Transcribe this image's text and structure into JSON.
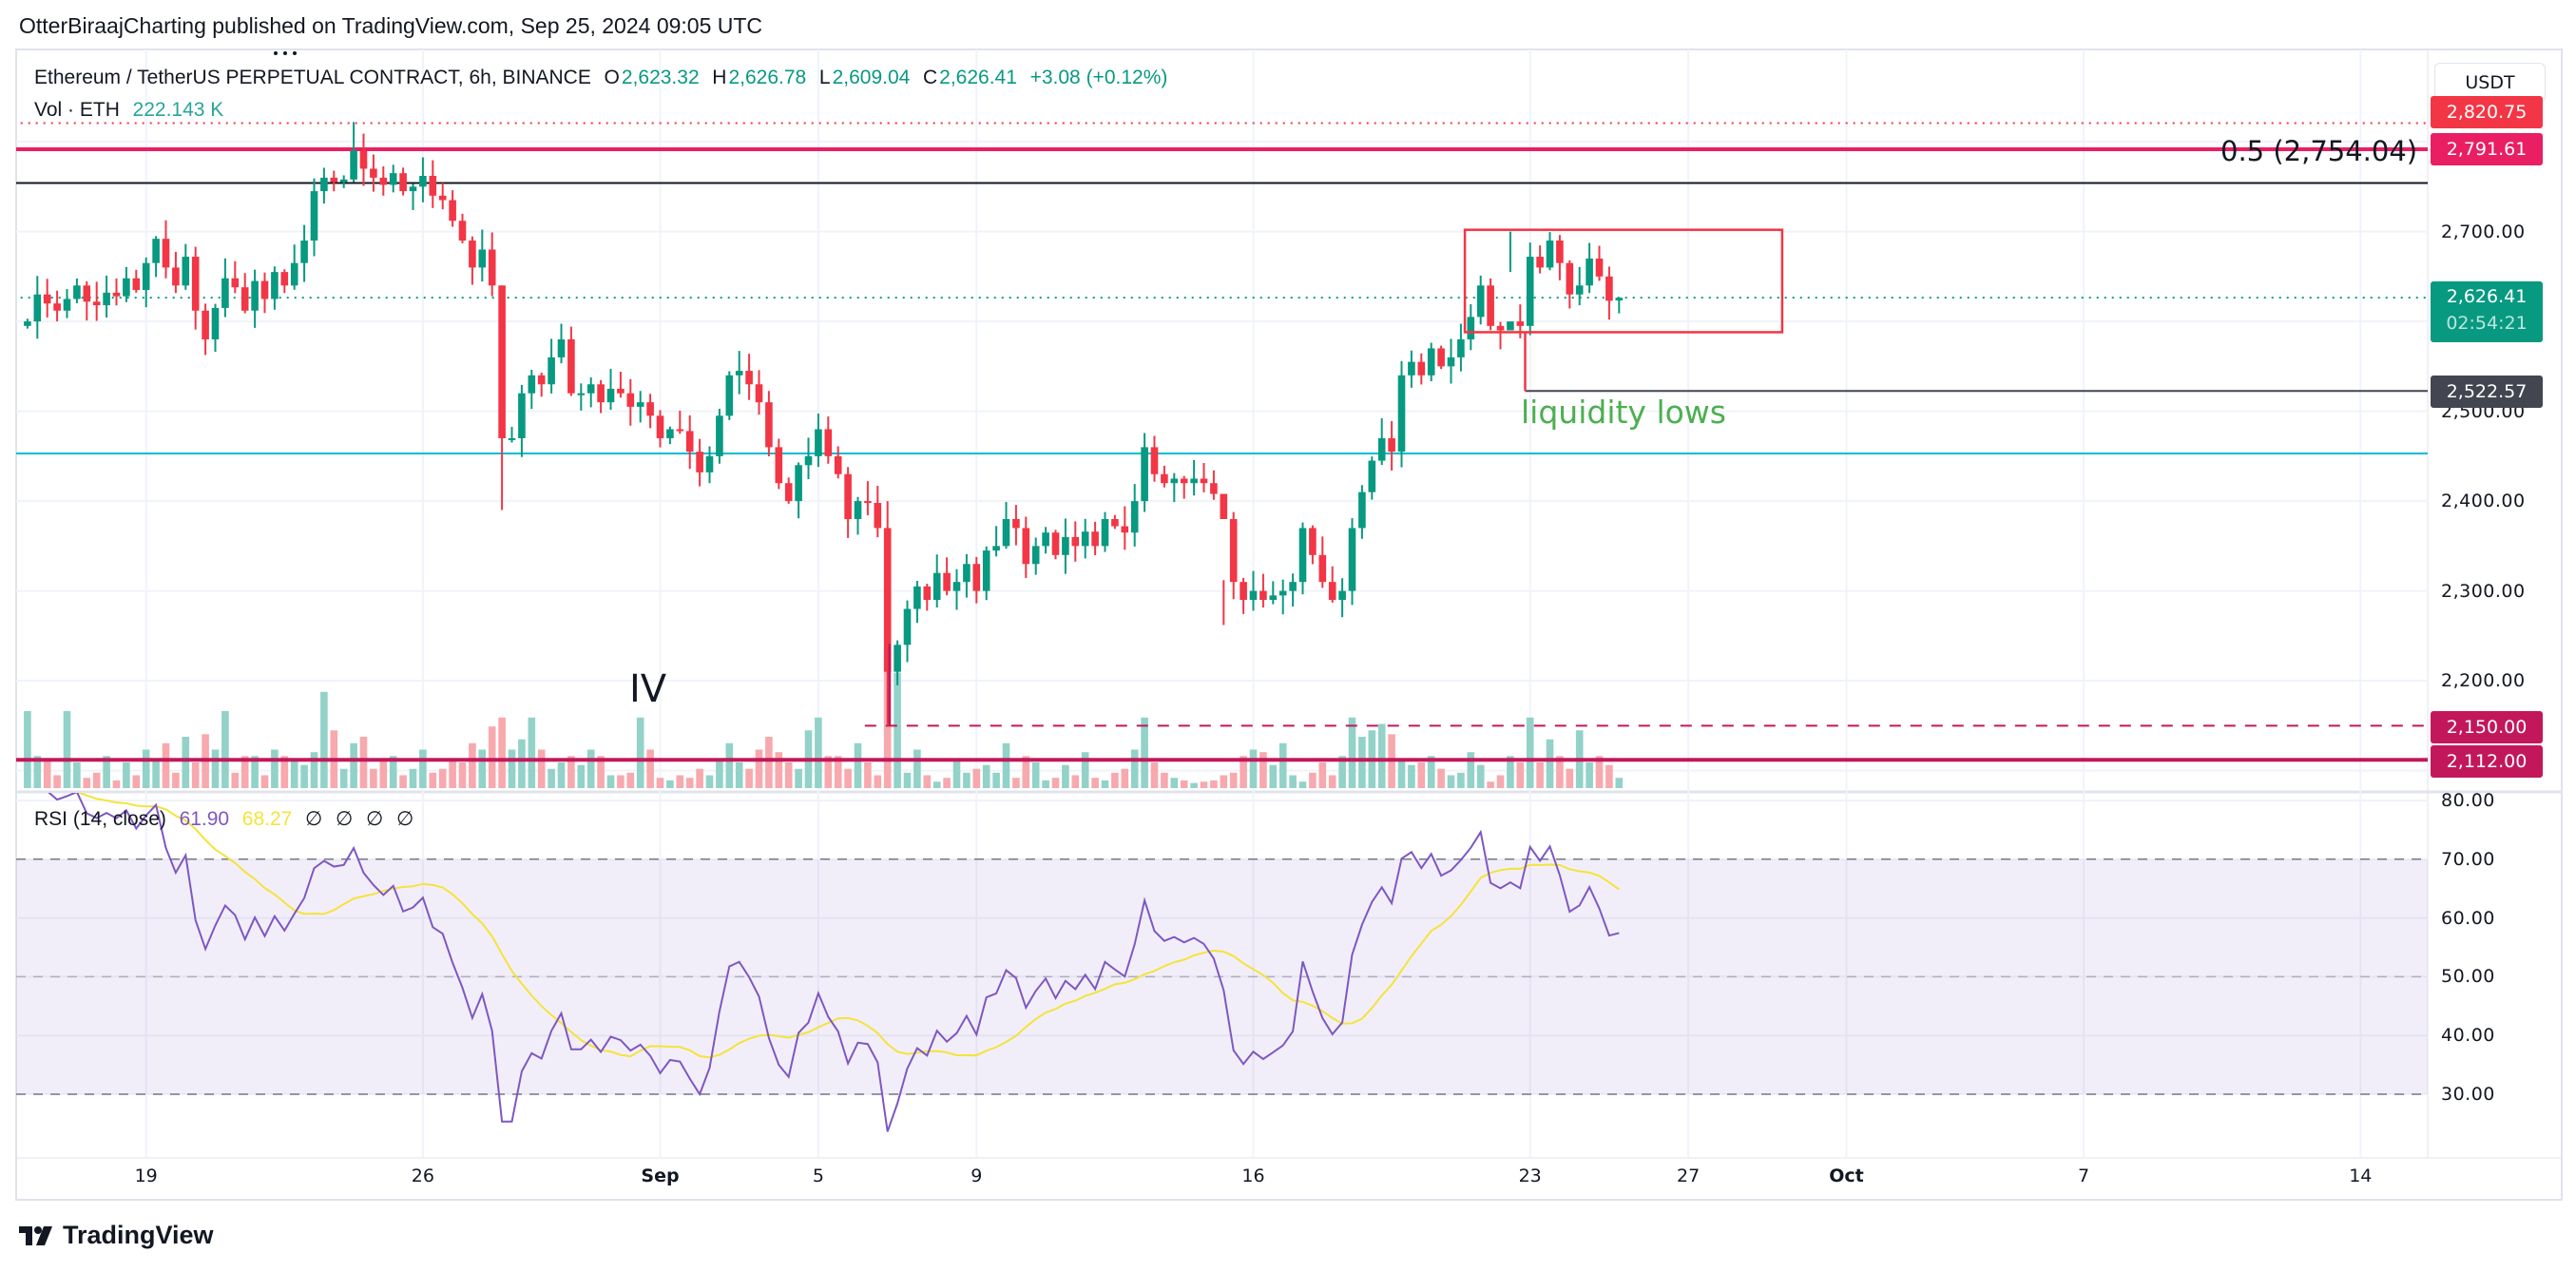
{
  "header": {
    "publisher_line": "OtterBiraajCharting published on TradingView.com, Sep 25, 2024 09:05 UTC"
  },
  "legend": {
    "symbol": "Ethereum / TetherUS PERPETUAL CONTRACT, 6h, BINANCE",
    "o_label": "O",
    "o": "2,623.32",
    "h_label": "H",
    "h": "2,626.78",
    "l_label": "L",
    "l": "2,609.04",
    "c_label": "C",
    "c": "2,626.41",
    "change": "+3.08 (+0.12%)",
    "vol_label": "Vol · ETH",
    "vol": "222.143 K"
  },
  "currency_button": "USDT",
  "price_labels": {
    "level_top": "2,820.75",
    "level_pink": "2,791.61",
    "last_price": "2,626.41",
    "countdown": "02:54:21",
    "liquidity": "2,522.57",
    "level_2150": "2,150.00",
    "level_2112": "2,112.00"
  },
  "annotations": {
    "fib": "0.5 (2,754.04)",
    "liquidity": "liquidity lows",
    "wave": "IV"
  },
  "rsi_legend": {
    "label": "RSI (14, close)",
    "rsi": "61.90",
    "ma": "68.27",
    "empty": [
      "∅",
      "∅",
      "∅",
      "∅"
    ]
  },
  "brand": "TradingView",
  "colors": {
    "up": "#089981",
    "down": "#F23645",
    "vol_up": "#92d2c8",
    "vol_down": "#f7a9ae",
    "rsi": "#7E57C2",
    "rsi_ma": "#F5E33B",
    "pink": "#E91E63",
    "magenta": "#C2185B",
    "cyan": "#00BCD4",
    "liquidity_text": "#4CAF50",
    "dark_label": "#434651"
  },
  "chart_data": {
    "type": "candlestick",
    "title": "Ethereum / TetherUS PERPETUAL CONTRACT, 6h, BINANCE",
    "interval": "6h",
    "first_candle": "Aug 16 2024 00:00",
    "first_open": 2595,
    "last_open": 2623.32,
    "closes": [
      2600,
      2630,
      2620,
      2612,
      2625,
      2640,
      2622,
      2618,
      2632,
      2628,
      2648,
      2635,
      2665,
      2692,
      2660,
      2640,
      2672,
      2612,
      2580,
      2615,
      2648,
      2638,
      2612,
      2645,
      2625,
      2655,
      2640,
      2665,
      2690,
      2745,
      2760,
      2755,
      2758,
      2790,
      2770,
      2760,
      2752,
      2765,
      2745,
      2750,
      2762,
      2740,
      2735,
      2712,
      2690,
      2660,
      2680,
      2640,
      2470,
      2470,
      2520,
      2540,
      2530,
      2560,
      2580,
      2520,
      2520,
      2530,
      2510,
      2525,
      2520,
      2505,
      2510,
      2495,
      2470,
      2480,
      2478,
      2455,
      2432,
      2450,
      2495,
      2540,
      2545,
      2530,
      2510,
      2460,
      2420,
      2400,
      2440,
      2450,
      2480,
      2450,
      2430,
      2380,
      2400,
      2398,
      2370,
      2210,
      2240,
      2280,
      2305,
      2290,
      2320,
      2300,
      2310,
      2330,
      2300,
      2345,
      2350,
      2380,
      2370,
      2330,
      2350,
      2365,
      2340,
      2360,
      2350,
      2366,
      2350,
      2380,
      2372,
      2365,
      2400,
      2460,
      2430,
      2420,
      2425,
      2420,
      2425,
      2420,
      2408,
      2380,
      2310,
      2290,
      2300,
      2290,
      2295,
      2300,
      2310,
      2370,
      2340,
      2310,
      2290,
      2300,
      2370,
      2410,
      2445,
      2470,
      2455,
      2540,
      2555,
      2540,
      2570,
      2550,
      2560,
      2580,
      2605,
      2640,
      2595,
      2590,
      2600,
      2595,
      2672,
      2660,
      2690,
      2665,
      2630,
      2640,
      2670,
      2650,
      2623,
      2626.41
    ],
    "wick_overrides": [
      [
        33,
        2822,
        2755
      ],
      [
        48,
        2640,
        2390
      ],
      [
        87,
        2400,
        2150
      ],
      [
        88,
        2245,
        2195
      ],
      [
        121,
        2312,
        2262
      ],
      [
        150,
        2700,
        2655
      ],
      [
        161,
        2626.78,
        2609.04
      ]
    ],
    "volumes": [
      60,
      25,
      22,
      10,
      60,
      20,
      8,
      12,
      25,
      6,
      20,
      10,
      30,
      22,
      35,
      12,
      40,
      20,
      42,
      30,
      60,
      12,
      25,
      25,
      10,
      30,
      25,
      22,
      18,
      28,
      75,
      45,
      15,
      35,
      40,
      15,
      22,
      25,
      10,
      15,
      30,
      12,
      15,
      22,
      20,
      35,
      30,
      48,
      55,
      30,
      38,
      55,
      30,
      15,
      20,
      25,
      18,
      30,
      25,
      10,
      10,
      12,
      55,
      30,
      8,
      6,
      10,
      8,
      15,
      10,
      22,
      35,
      20,
      15,
      30,
      40,
      28,
      20,
      15,
      45,
      55,
      25,
      25,
      15,
      35,
      20,
      10,
      110,
      90,
      12,
      30,
      10,
      5,
      8,
      22,
      12,
      15,
      18,
      12,
      35,
      8,
      25,
      20,
      6,
      8,
      18,
      10,
      28,
      8,
      6,
      12,
      15,
      30,
      55,
      20,
      12,
      8,
      6,
      4,
      5,
      6,
      10,
      12,
      25,
      30,
      28,
      18,
      35,
      10,
      5,
      12,
      20,
      10,
      25,
      55,
      40,
      45,
      50,
      42,
      22,
      18,
      20,
      25,
      15,
      10,
      12,
      28,
      18,
      5,
      10,
      25,
      20,
      55,
      20,
      38,
      25,
      15,
      45,
      20,
      25,
      18,
      8
    ],
    "price_ticks": [
      {
        "value": 2700,
        "label": "2,700.00"
      },
      {
        "value": 2500,
        "label": "2,500.00"
      },
      {
        "value": 2400,
        "label": "2,400.00"
      },
      {
        "value": 2300,
        "label": "2,300.00"
      },
      {
        "value": 2200,
        "label": "2,200.00"
      }
    ],
    "grid_prices": [
      2100,
      2200,
      2300,
      2400,
      2500,
      2600,
      2700,
      2800
    ],
    "rsi_ticks": [
      {
        "value": 80,
        "label": "80.00"
      },
      {
        "value": 70,
        "label": "70.00"
      },
      {
        "value": 60,
        "label": "60.00"
      },
      {
        "value": 50,
        "label": "50.00"
      },
      {
        "value": 40,
        "label": "40.00"
      },
      {
        "value": 30,
        "label": "30.00"
      }
    ],
    "rsi": {
      "length": 14,
      "ma_length": 14,
      "upper": 70,
      "middle": 50,
      "lower": 30
    },
    "x_ticks": [
      {
        "index": 12,
        "label": "19",
        "bold": false
      },
      {
        "index": 40,
        "label": "26",
        "bold": false
      },
      {
        "index": 64,
        "label": "Sep",
        "bold": true
      },
      {
        "index": 80,
        "label": "5",
        "bold": false
      },
      {
        "index": 96,
        "label": "9",
        "bold": false
      },
      {
        "index": 124,
        "label": "16",
        "bold": false
      },
      {
        "index": 152,
        "label": "23",
        "bold": false
      },
      {
        "index": 168,
        "label": "27",
        "bold": false
      },
      {
        "index": 184,
        "label": "Oct",
        "bold": true
      },
      {
        "index": 208,
        "label": "7",
        "bold": false
      },
      {
        "index": 236,
        "label": "14",
        "bold": false
      }
    ],
    "levels": [
      {
        "name": "level-2820",
        "price": 2820.75,
        "color": "#F23645",
        "style": "dotted",
        "from_index": -3
      },
      {
        "name": "level-2791",
        "price": 2791.61,
        "color": "#E91E63",
        "style": "solid-thick",
        "from_index": -3
      },
      {
        "name": "fib-0-5",
        "price": 2754.04,
        "color": "#131722",
        "style": "solid",
        "from_index": -3
      },
      {
        "name": "last-price",
        "price": 2626.41,
        "color": "#089981",
        "style": "dotted",
        "from_index": -3
      },
      {
        "name": "cyan-support",
        "price": 2453,
        "color": "#00BCD4",
        "style": "solid",
        "from_index": -3
      },
      {
        "name": "liquidity-line",
        "price": 2522.57,
        "color": "#434651",
        "style": "solid",
        "from_index": 151.5
      },
      {
        "name": "level-2150",
        "price": 2150,
        "color": "#C2185B",
        "style": "dashed",
        "from_index": 84.7
      },
      {
        "name": "level-2112",
        "price": 2112,
        "color": "#C2185B",
        "style": "solid-thick",
        "from_index": -3
      }
    ],
    "box": {
      "from_index": 145.4,
      "to_index": 177.5,
      "top": 2702,
      "bottom": 2588,
      "color": "#F23645"
    },
    "vertical_markers": [
      {
        "name": "liquidity-marker",
        "index": 151.5,
        "from": 2588,
        "to": 2522.57,
        "color": "#F23645",
        "style": "solid"
      },
      {
        "name": "level-2150-marker",
        "index": 87.2,
        "from": 2241,
        "to": 2150,
        "color": "#C2185B",
        "style": "solid"
      }
    ]
  }
}
